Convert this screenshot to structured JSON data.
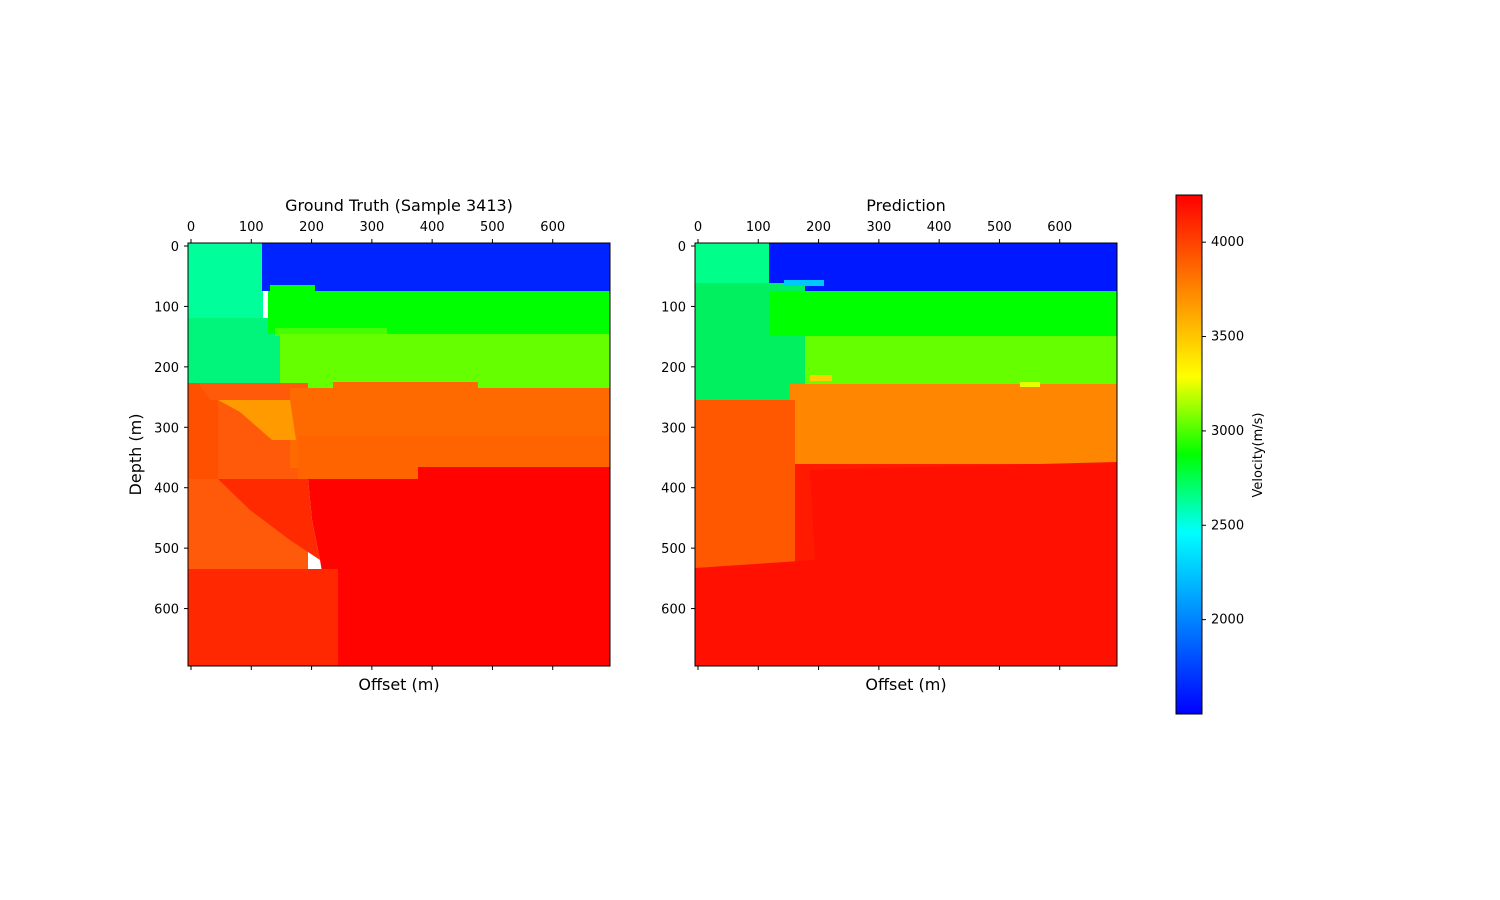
{
  "chart_data": [
    {
      "type": "heatmap",
      "title": "Ground Truth (Sample 3413)",
      "xlabel": "Offset (m)",
      "ylabel": "Depth (m)",
      "xlim": [
        0,
        700
      ],
      "ylim": [
        700,
        0
      ],
      "x_ticks": [
        0,
        100,
        200,
        300,
        400,
        500,
        600
      ],
      "y_ticks": [
        0,
        100,
        200,
        300,
        400,
        500,
        600
      ],
      "x_tick_position": "top",
      "grid": false,
      "layers": [
        {
          "region": "upper-left block",
          "x_range": [
            0,
            120
          ],
          "y_range": [
            0,
            250
          ],
          "velocity": 2550
        },
        {
          "region": "water layer",
          "x_range": [
            120,
            700
          ],
          "y_range": [
            0,
            80
          ],
          "velocity": 1600
        },
        {
          "region": "layer 2",
          "x_range": [
            130,
            700
          ],
          "y_range": [
            80,
            150
          ],
          "velocity": 3050
        },
        {
          "region": "layer 3",
          "x_range": [
            150,
            700
          ],
          "y_range": [
            150,
            240
          ],
          "velocity": 3200
        },
        {
          "region": "layer 4",
          "x_range": [
            170,
            700
          ],
          "y_range": [
            240,
            370
          ],
          "velocity": 3950
        },
        {
          "region": "wedge",
          "x_range": [
            50,
            175
          ],
          "y_range": [
            260,
            330
          ],
          "velocity": 3800
        },
        {
          "region": "left block",
          "x_range": [
            0,
            200
          ],
          "y_range": [
            250,
            535
          ],
          "velocity": 4000
        },
        {
          "region": "deep block",
          "x_range": [
            200,
            700
          ],
          "y_range": [
            370,
            700
          ],
          "velocity": 4250
        },
        {
          "region": "bottom left",
          "x_range": [
            0,
            250
          ],
          "y_range": [
            535,
            700
          ],
          "velocity": 4150
        }
      ]
    },
    {
      "type": "heatmap",
      "title": "Prediction",
      "xlabel": "Offset (m)",
      "ylabel": "",
      "xlim": [
        0,
        700
      ],
      "ylim": [
        700,
        0
      ],
      "x_ticks": [
        0,
        100,
        200,
        300,
        400,
        500,
        600
      ],
      "y_ticks": [
        0,
        100,
        200,
        300,
        400,
        500,
        600
      ],
      "x_tick_position": "top",
      "grid": false
    }
  ],
  "colorbar": {
    "label": "Velocity(m/s)",
    "vmin": 1500,
    "vmax": 4250,
    "ticks": [
      2000,
      2500,
      3000,
      3500,
      4000
    ],
    "colormap": "jet",
    "position": "right"
  }
}
